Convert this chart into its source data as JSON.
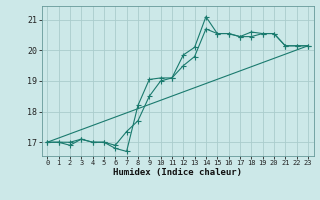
{
  "title": "",
  "xlabel": "Humidex (Indice chaleur)",
  "bg_color": "#cce8e8",
  "line_color": "#1a7a6e",
  "grid_color": "#aacccc",
  "xlim": [
    -0.5,
    23.5
  ],
  "ylim": [
    16.55,
    21.45
  ],
  "yticks": [
    17,
    18,
    19,
    20,
    21
  ],
  "xticks": [
    0,
    1,
    2,
    3,
    4,
    5,
    6,
    7,
    8,
    9,
    10,
    11,
    12,
    13,
    14,
    15,
    16,
    17,
    18,
    19,
    20,
    21,
    22,
    23
  ],
  "line1_x": [
    0,
    1,
    2,
    3,
    4,
    5,
    6,
    7,
    8,
    9,
    10,
    11,
    12,
    13,
    14,
    15,
    16,
    17,
    18,
    19,
    20,
    21,
    22,
    23
  ],
  "line1_y": [
    17.0,
    17.0,
    16.9,
    17.1,
    17.0,
    17.0,
    16.8,
    16.7,
    18.2,
    19.05,
    19.1,
    19.1,
    19.85,
    20.1,
    21.1,
    20.55,
    20.55,
    20.45,
    20.6,
    20.55,
    20.55,
    20.15,
    20.15,
    20.15
  ],
  "line2_x": [
    0,
    1,
    2,
    3,
    4,
    5,
    6,
    7,
    8,
    9,
    10,
    11,
    12,
    13,
    14,
    15,
    16,
    17,
    18,
    19,
    20,
    21,
    22,
    23
  ],
  "line2_y": [
    17.0,
    17.0,
    17.0,
    17.1,
    17.0,
    17.0,
    16.9,
    17.35,
    17.7,
    18.5,
    19.0,
    19.1,
    19.5,
    19.8,
    20.7,
    20.55,
    20.55,
    20.45,
    20.45,
    20.55,
    20.55,
    20.15,
    20.15,
    20.15
  ],
  "line3_x": [
    0,
    23
  ],
  "line3_y": [
    17.0,
    20.15
  ],
  "marker_size": 2.0,
  "line_width": 0.8
}
